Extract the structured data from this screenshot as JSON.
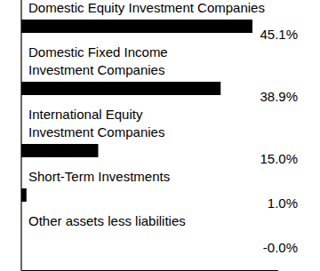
{
  "chart_data": {
    "type": "bar",
    "orientation": "horizontal",
    "categories": [
      "Domestic Equity Investment Companies",
      "Domestic Fixed Income\nInvestment Companies",
      "International Equity\nInvestment Companies",
      "Short-Term Investments",
      "Other assets less liabilities"
    ],
    "values": [
      45.1,
      38.9,
      15.0,
      1.0,
      -0.0
    ],
    "value_labels": [
      "45.1%",
      "38.9%",
      "15.0%",
      "1.0%",
      "-0.0%"
    ],
    "color": "#000000",
    "xlim": [
      0,
      50
    ],
    "xticks": [],
    "data_labels": true,
    "tick_labels": false,
    "grid": false
  }
}
